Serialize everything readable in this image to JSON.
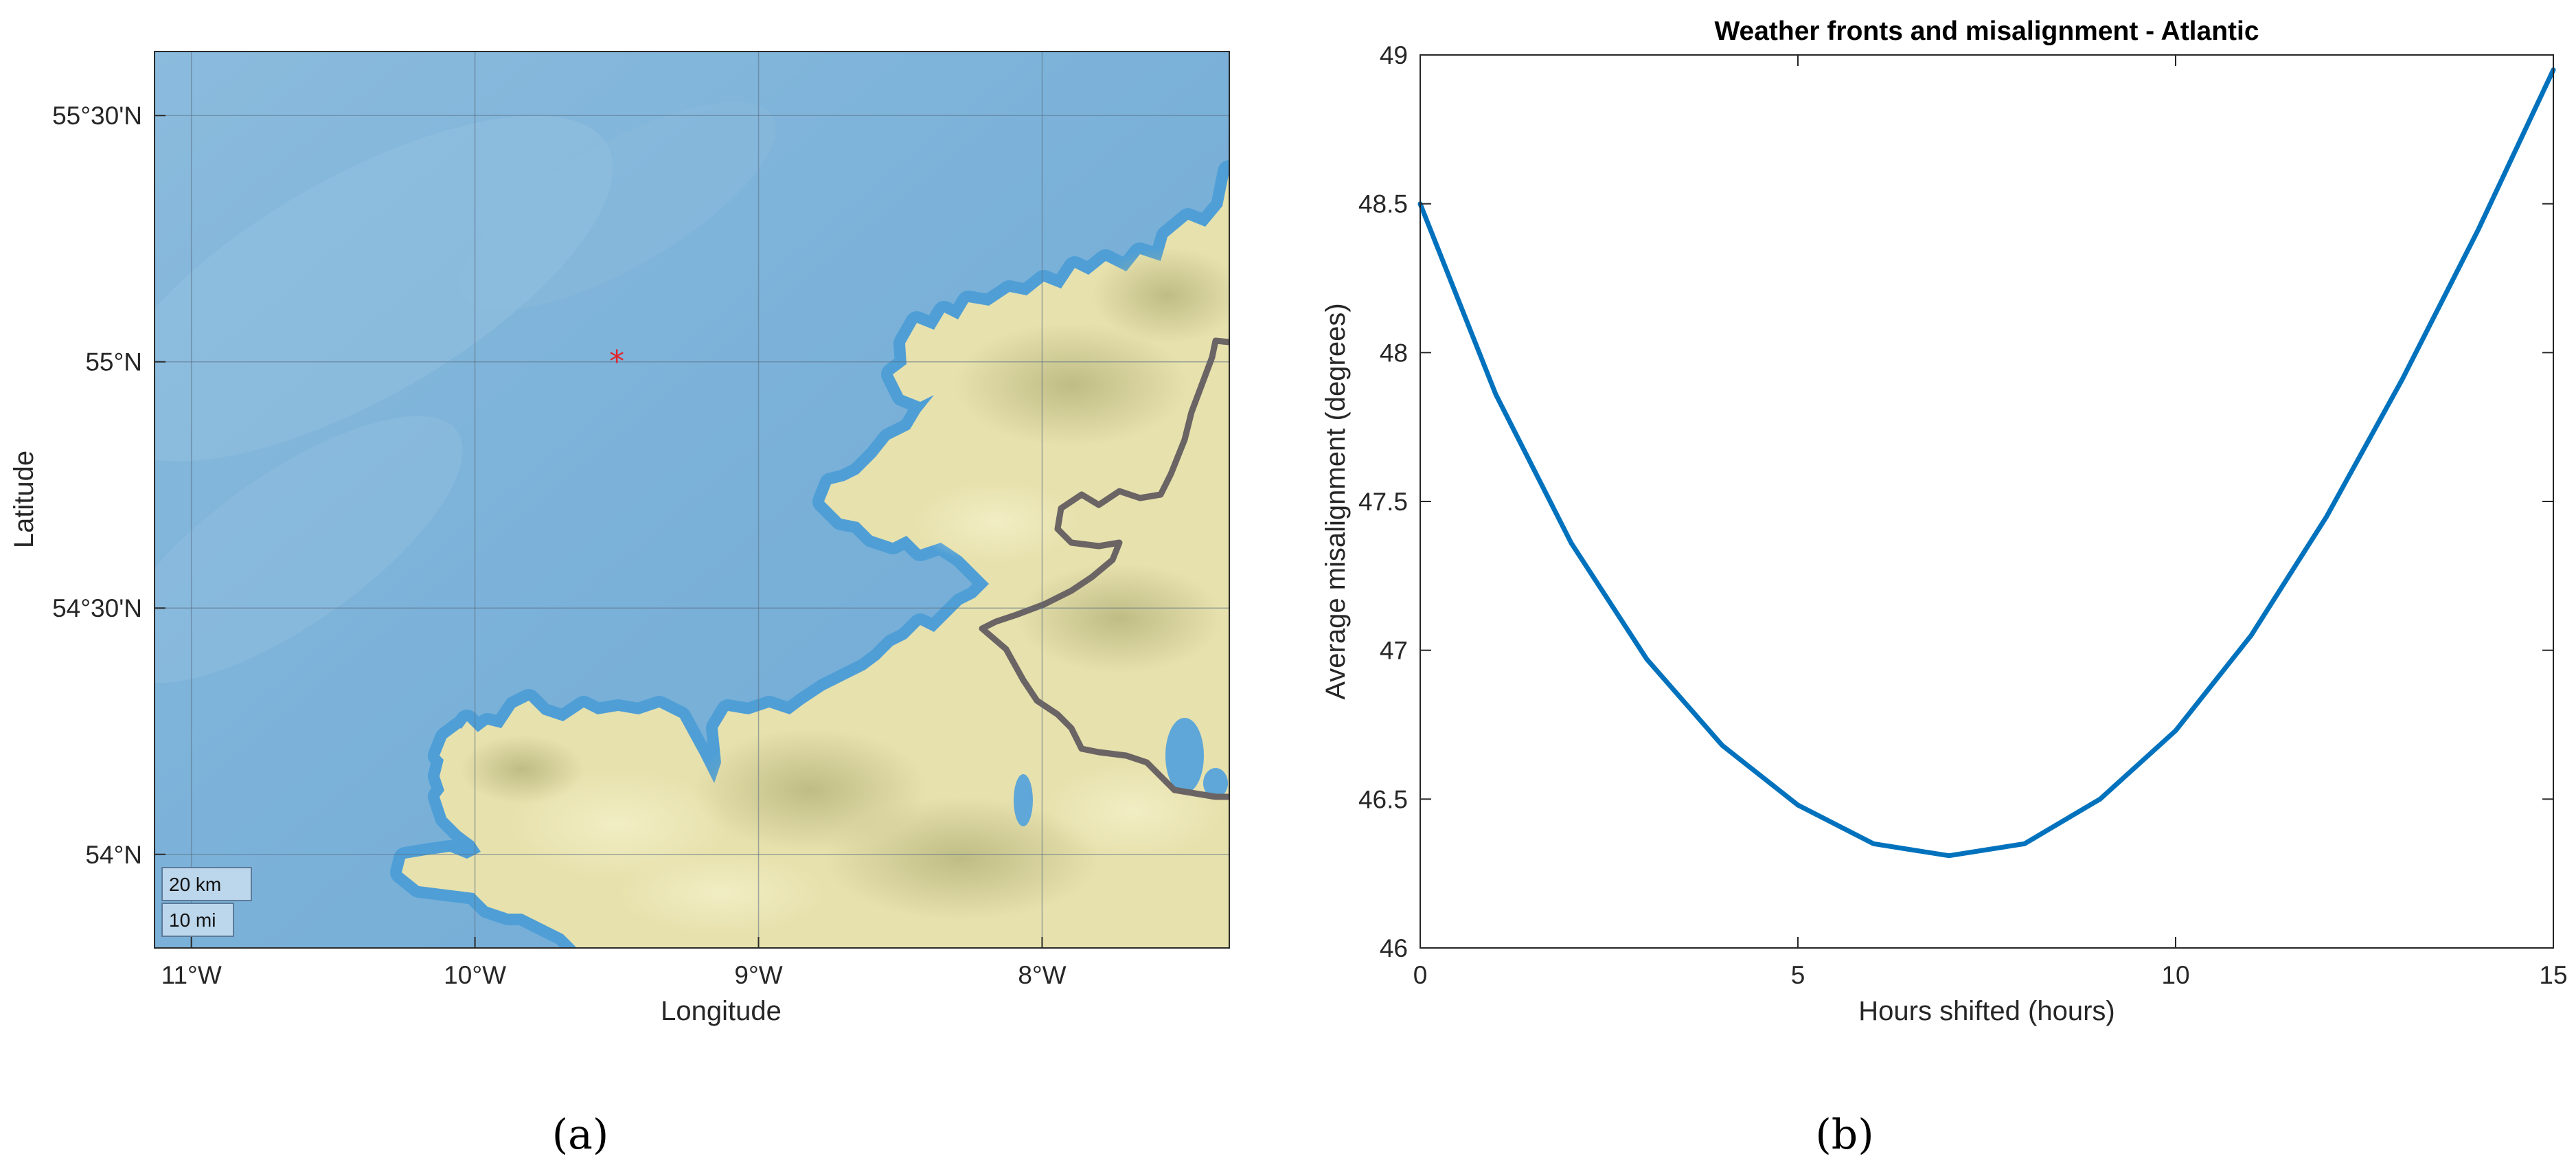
{
  "panels": {
    "a_label": "(a)",
    "b_label": "(b)"
  },
  "map": {
    "xlabel": "Longitude",
    "ylabel": "Latitude",
    "lon_range": [
      -11.13,
      -7.34
    ],
    "lat_range": [
      53.81,
      55.63
    ],
    "lon_ticks": [
      {
        "value": -11,
        "label": "11°W"
      },
      {
        "value": -10,
        "label": "10°W"
      },
      {
        "value": -9,
        "label": "9°W"
      },
      {
        "value": -8,
        "label": "8°W"
      }
    ],
    "lat_ticks": [
      {
        "value": 55.5,
        "label": "55°30'N"
      },
      {
        "value": 55.0,
        "label": "55°N"
      },
      {
        "value": 54.5,
        "label": "54°30'N"
      },
      {
        "value": 54.0,
        "label": "54°N"
      }
    ],
    "marker": {
      "lon": -9.5,
      "lat": 55.0,
      "symbol": "*",
      "color": "#e3242b"
    },
    "scale_bar": {
      "km_label": "20 km",
      "mi_label": "10 mi"
    },
    "colors": {
      "sea": "#7fb3d8",
      "sea_deep": "#75aad3",
      "coast": "#4f9fd6",
      "land": "#e7e1ad",
      "land_dark": "#c9c48b",
      "border": "#6b6464",
      "grid": "#5b6f83"
    }
  },
  "chart_data": {
    "type": "line",
    "title": "Weather fronts and misalignment - Atlantic",
    "xlabel": "Hours shifted (hours)",
    "ylabel": "Average misalignment (degrees)",
    "xlim": [
      0,
      15
    ],
    "ylim": [
      46,
      49
    ],
    "xticks": [
      0,
      5,
      10,
      15
    ],
    "yticks": [
      46,
      46.5,
      47,
      47.5,
      48,
      48.5,
      49
    ],
    "grid": false,
    "series": [
      {
        "color": "#0072bd",
        "x": [
          0,
          1,
          2,
          3,
          4,
          5,
          6,
          7,
          8,
          9,
          10,
          11,
          12,
          13,
          14,
          15
        ],
        "values": [
          48.5,
          47.86,
          47.36,
          46.97,
          46.68,
          46.48,
          46.35,
          46.31,
          46.35,
          46.5,
          46.73,
          47.05,
          47.45,
          47.91,
          48.41,
          48.95
        ]
      }
    ]
  }
}
